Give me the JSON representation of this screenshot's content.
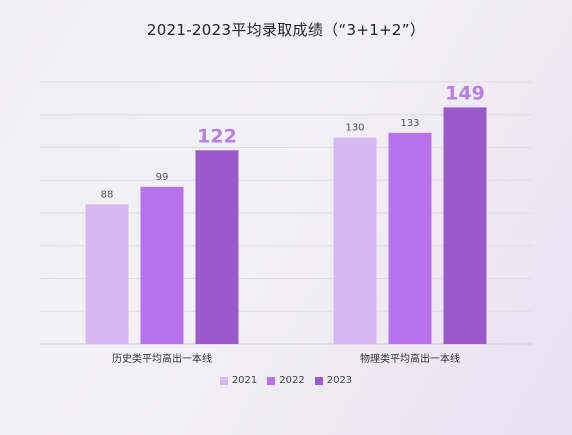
{
  "chart_data": {
    "type": "bar",
    "title": "2021-2023平均录取成绩（“3+1+2”）",
    "categories": [
      "历史类平均高出一本线",
      "物理类平均高出一本线"
    ],
    "series": [
      {
        "name": "2021",
        "color": "#d6b8f3",
        "values": [
          88,
          130
        ]
      },
      {
        "name": "2022",
        "color": "#b873ec",
        "values": [
          99,
          133
        ]
      },
      {
        "name": "2023",
        "color": "#9b5ac9",
        "values": [
          122,
          149
        ]
      }
    ],
    "highlight_series": "2023",
    "highlight_color": "#b97ee6",
    "ylim": [
      0,
      165
    ],
    "grid": true,
    "legend_position": "bottom"
  }
}
